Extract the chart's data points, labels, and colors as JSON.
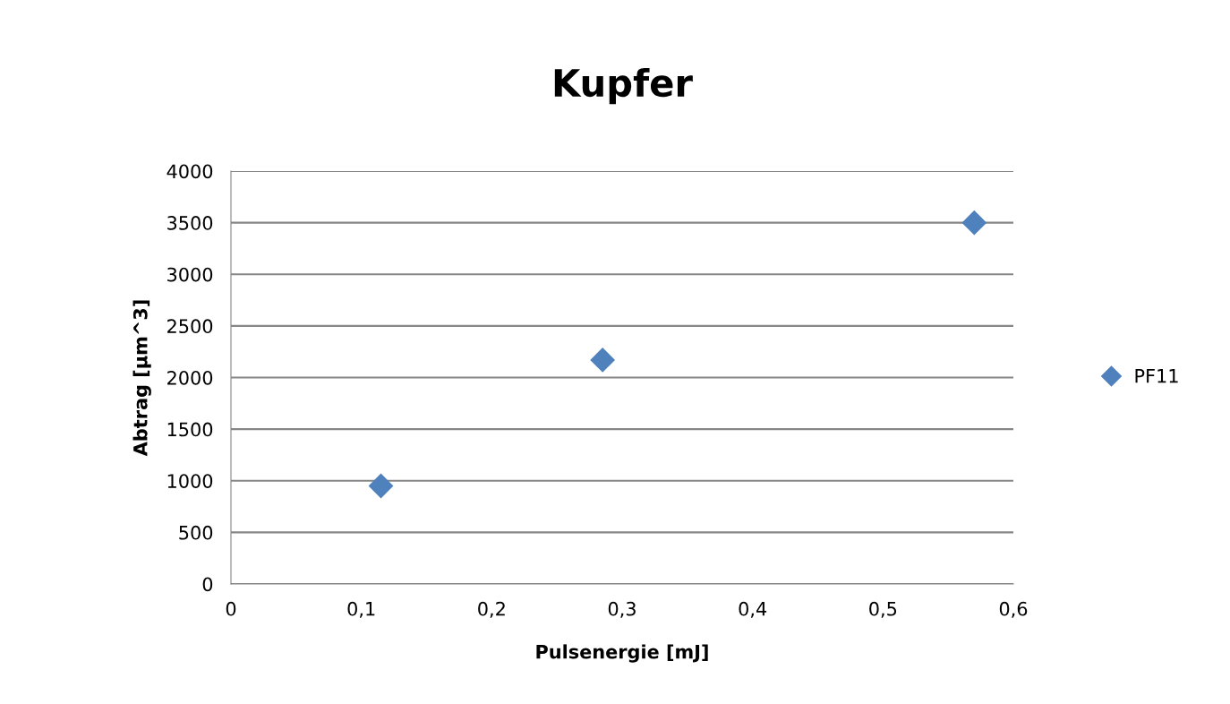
{
  "chart_data": {
    "type": "scatter",
    "title": "Kupfer",
    "xlabel": "Pulsenergie [mJ]",
    "ylabel": "Abtrag [µm^3]",
    "series": [
      {
        "name": "PF11",
        "color": "#4f81bd",
        "x": [
          0.115,
          0.285,
          0.57
        ],
        "values": [
          950,
          2170,
          3500
        ]
      }
    ],
    "xlim": [
      0,
      0.6
    ],
    "xticks": [
      0,
      {
        "value": 0.1,
        "label": "0,1"
      },
      {
        "value": 0.2,
        "label": "0,2"
      },
      {
        "value": 0.3,
        "label": "0,3"
      },
      {
        "value": 0.4,
        "label": "0,4"
      },
      {
        "value": 0.5,
        "label": "0,5"
      },
      {
        "value": 0.6,
        "label": "0,6"
      }
    ],
    "ylim": [
      0,
      4000
    ],
    "yticks": [
      0,
      500,
      1000,
      1500,
      2000,
      2500,
      3000,
      3500,
      4000
    ],
    "grid": "y",
    "legend": "right",
    "marker": "diamond"
  }
}
